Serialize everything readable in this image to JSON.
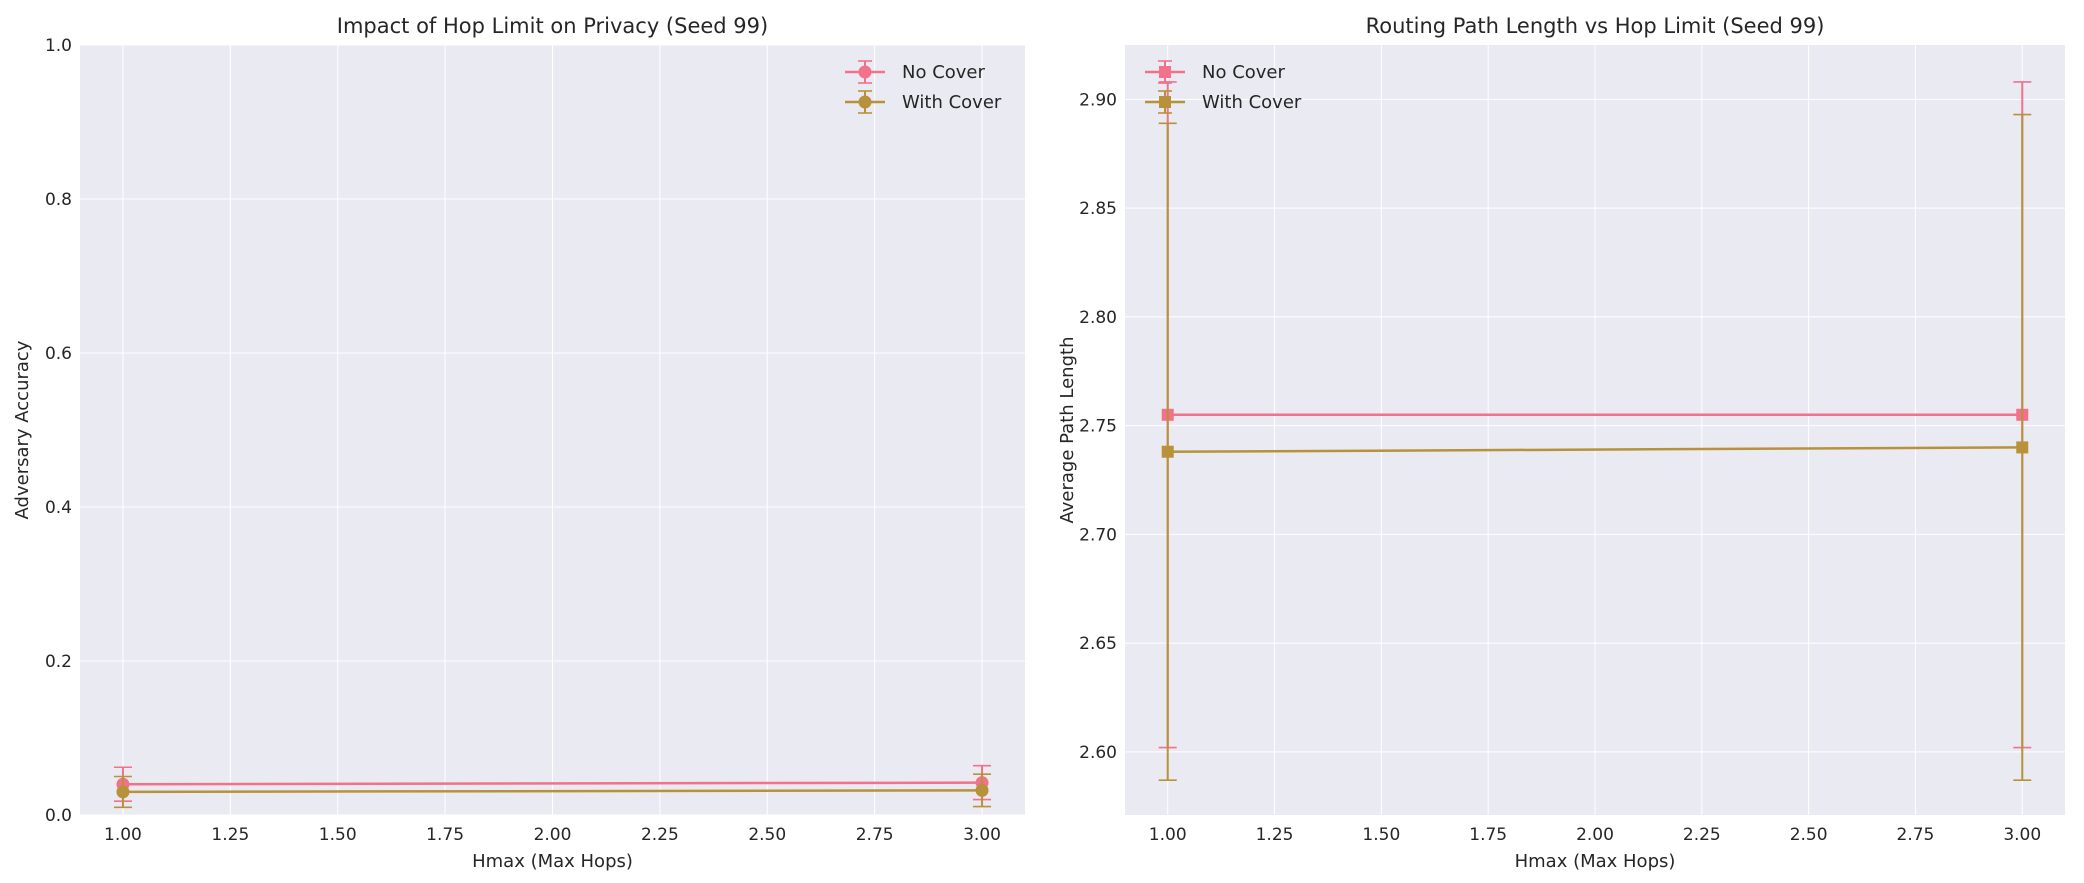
{
  "colors": {
    "no_cover": "#f2718b",
    "with_cover": "#b8923a",
    "panel_bg": "#eaeaf2",
    "grid": "#ffffff"
  },
  "chart_data": [
    {
      "type": "line",
      "title": "Impact of Hop Limit on Privacy (Seed 99)",
      "xlabel": "Hmax (Max Hops)",
      "ylabel": "Adversary Accuracy",
      "xlim": [
        0.9,
        3.1
      ],
      "ylim": [
        0.0,
        1.0
      ],
      "xticks": [
        1.0,
        1.25,
        1.5,
        1.75,
        2.0,
        2.25,
        2.5,
        2.75,
        3.0
      ],
      "xtick_labels": [
        "1.00",
        "1.25",
        "1.50",
        "1.75",
        "2.00",
        "2.25",
        "2.50",
        "2.75",
        "3.00"
      ],
      "yticks": [
        0.0,
        0.2,
        0.4,
        0.6,
        0.8,
        1.0
      ],
      "ytick_labels": [
        "0.0",
        "0.2",
        "0.4",
        "0.6",
        "0.8",
        "1.0"
      ],
      "grid": true,
      "legend": "top-right",
      "marker": "circle",
      "series": [
        {
          "name": "No Cover",
          "color_key": "no_cover",
          "x": [
            1.0,
            3.0
          ],
          "y": [
            0.04,
            0.042
          ],
          "yerr": [
            0.022,
            0.022
          ]
        },
        {
          "name": "With Cover",
          "color_key": "with_cover",
          "x": [
            1.0,
            3.0
          ],
          "y": [
            0.03,
            0.032
          ],
          "yerr": [
            0.02,
            0.021
          ]
        }
      ]
    },
    {
      "type": "line",
      "title": "Routing Path Length vs Hop Limit (Seed 99)",
      "xlabel": "Hmax (Max Hops)",
      "ylabel": "Average Path Length",
      "xlim": [
        0.9,
        3.1
      ],
      "ylim": [
        2.571,
        2.925
      ],
      "xticks": [
        1.0,
        1.25,
        1.5,
        1.75,
        2.0,
        2.25,
        2.5,
        2.75,
        3.0
      ],
      "xtick_labels": [
        "1.00",
        "1.25",
        "1.50",
        "1.75",
        "2.00",
        "2.25",
        "2.50",
        "2.75",
        "3.00"
      ],
      "yticks": [
        2.6,
        2.65,
        2.7,
        2.75,
        2.8,
        2.85,
        2.9
      ],
      "ytick_labels": [
        "2.60",
        "2.65",
        "2.70",
        "2.75",
        "2.80",
        "2.85",
        "2.90"
      ],
      "grid": true,
      "legend": "top-left",
      "marker": "square",
      "series": [
        {
          "name": "No Cover",
          "color_key": "no_cover",
          "x": [
            1.0,
            3.0
          ],
          "y": [
            2.755,
            2.755
          ],
          "yerr": [
            0.153,
            0.153
          ]
        },
        {
          "name": "With Cover",
          "color_key": "with_cover",
          "x": [
            1.0,
            3.0
          ],
          "y": [
            2.738,
            2.74
          ],
          "yerr": [
            0.151,
            0.153
          ]
        }
      ]
    }
  ]
}
